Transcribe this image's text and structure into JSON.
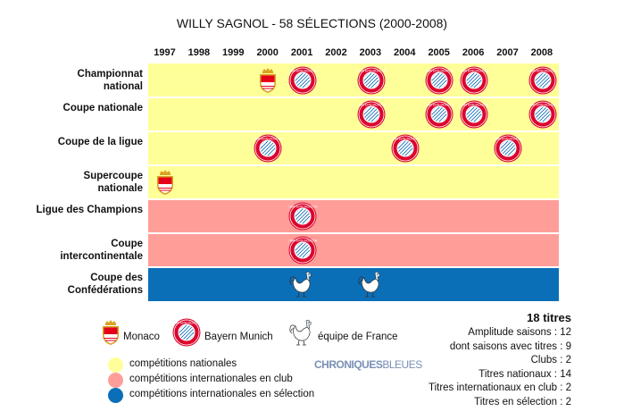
{
  "title": "WILLY SAGNOL - 58 SÉLECTIONS (2000-2008)",
  "chart_data": {
    "type": "table",
    "years": [
      "1997",
      "1998",
      "1999",
      "2000",
      "2001",
      "2002",
      "2003",
      "2004",
      "2005",
      "2006",
      "2007",
      "2008"
    ],
    "rows": [
      {
        "label": "Championnat national",
        "category": "national",
        "entries": [
          {
            "year": "2000",
            "club": "monaco"
          },
          {
            "year": "2001",
            "club": "bayern"
          },
          {
            "year": "2003",
            "club": "bayern"
          },
          {
            "year": "2005",
            "club": "bayern"
          },
          {
            "year": "2006",
            "club": "bayern"
          },
          {
            "year": "2008",
            "club": "bayern"
          }
        ]
      },
      {
        "label": "Coupe nationale",
        "category": "national",
        "entries": [
          {
            "year": "2003",
            "club": "bayern"
          },
          {
            "year": "2005",
            "club": "bayern"
          },
          {
            "year": "2006",
            "club": "bayern"
          },
          {
            "year": "2008",
            "club": "bayern"
          }
        ]
      },
      {
        "label": "Coupe de la ligue",
        "category": "national",
        "entries": [
          {
            "year": "2000",
            "club": "bayern"
          },
          {
            "year": "2004",
            "club": "bayern"
          },
          {
            "year": "2007",
            "club": "bayern"
          }
        ]
      },
      {
        "label": "Supercoupe nationale",
        "category": "national",
        "entries": [
          {
            "year": "1997",
            "club": "monaco"
          }
        ]
      },
      {
        "label": "Ligue des Champions",
        "category": "club_international",
        "entries": [
          {
            "year": "2001",
            "club": "bayern"
          }
        ]
      },
      {
        "label": "Coupe intercontinentale",
        "category": "club_international",
        "entries": [
          {
            "year": "2001",
            "club": "bayern"
          }
        ]
      },
      {
        "label": "Coupe des Confédérations",
        "category": "national_team",
        "entries": [
          {
            "year": "2001",
            "club": "france"
          },
          {
            "year": "2003",
            "club": "france"
          }
        ]
      }
    ],
    "category_colors": {
      "national": "#ffff99",
      "club_international": "#ff9e99",
      "national_team": "#0b6fb8"
    }
  },
  "legend": {
    "teams": [
      {
        "key": "monaco",
        "label": "Monaco"
      },
      {
        "key": "bayern",
        "label": "Bayern Munich"
      },
      {
        "key": "france",
        "label": "équipe de France"
      }
    ],
    "categories": [
      {
        "label": "compétitions nationales",
        "color": "#ffff99"
      },
      {
        "label": "compétitions internationales en club",
        "color": "#ff9e99"
      },
      {
        "label": "compétitions internationales en sélection",
        "color": "#0b6fb8"
      }
    ]
  },
  "stats": {
    "total": "18 titres",
    "lines": [
      "Amplitude saisons : 12",
      "dont saisons avec titres : 9",
      "Clubs : 2",
      "Titres nationaux : 14",
      "Titres internationaux en club : 2",
      "Titres en sélection : 2"
    ]
  },
  "watermark": {
    "bold": "CHRONIQUES",
    "light": "BLEUES"
  },
  "icon_text": {
    "bayern": "FC BAYERN MÜNCHEN"
  }
}
